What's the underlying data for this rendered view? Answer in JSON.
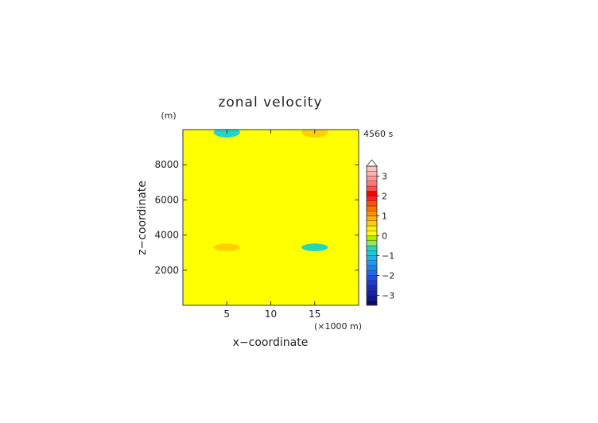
{
  "chart_data": {
    "type": "heatmap",
    "title": "zonal velocity",
    "xlabel": "x−coordinate",
    "ylabel": "z−coordinate",
    "x_unit": "(×1000 m)",
    "y_unit": "(m)",
    "time_label": "4560 s",
    "xlim": [
      0,
      20
    ],
    "ylim": [
      0,
      10000
    ],
    "x_ticks": [
      5,
      10,
      15
    ],
    "x_tick_labels": [
      "5",
      "10",
      "15"
    ],
    "y_ticks": [
      2000,
      4000,
      6000,
      8000
    ],
    "y_tick_labels": [
      "2000",
      "4000",
      "6000",
      "8000"
    ],
    "colorbar": {
      "levels": [
        -3.5,
        -3.25,
        -3,
        -2.75,
        -2.5,
        -2.25,
        -2,
        -1.75,
        -1.5,
        -1.25,
        -1,
        -0.75,
        -0.5,
        -0.25,
        0,
        0.25,
        0.5,
        0.75,
        1,
        1.25,
        1.5,
        1.75,
        2,
        2.25,
        2.5,
        2.75,
        3,
        3.25,
        3.5
      ],
      "colors": [
        "#0a0a6e",
        "#10148a",
        "#1620a0",
        "#1e2ab8",
        "#1e3ad0",
        "#1e50e0",
        "#2068ea",
        "#2080f0",
        "#2098f0",
        "#20b0ea",
        "#20c8dc",
        "#20d8c0",
        "#90e860",
        "#a8f000",
        "#ffff00",
        "#fff000",
        "#ffd000",
        "#ffb000",
        "#ff9000",
        "#ff7000",
        "#ff5000",
        "#ff2020",
        "#ff0000",
        "#ff5050",
        "#ff7878",
        "#ff9898",
        "#ffb0b0",
        "#ffc0c0"
      ],
      "tick_values": [
        -3,
        -2,
        -1,
        0,
        1,
        2,
        3
      ],
      "tick_labels": [
        "−3",
        "−2",
        "−1",
        "0",
        "1",
        "2",
        "3"
      ],
      "extend": "max"
    },
    "regions": [
      {
        "x": [
          0,
          10
        ],
        "z": [
          0,
          2450
        ],
        "value": 0.1
      },
      {
        "x": [
          0,
          10
        ],
        "z": [
          2450,
          4150
        ],
        "value": 0.2
      },
      {
        "x": [
          0,
          10
        ],
        "z": [
          4150,
          5750
        ],
        "value": 0.1
      },
      {
        "x": [
          0,
          10
        ],
        "z": [
          5750,
          8250
        ],
        "value": 0.2
      },
      {
        "x": [
          0,
          10
        ],
        "z": [
          8250,
          10000
        ],
        "value": 0.1
      },
      {
        "x": [
          10,
          20
        ],
        "z": [
          0,
          2450
        ],
        "value": 0.2
      },
      {
        "x": [
          10,
          20
        ],
        "z": [
          2450,
          4150
        ],
        "value": 0.1
      },
      {
        "x": [
          10,
          20
        ],
        "z": [
          4150,
          5750
        ],
        "value": 0.2
      },
      {
        "x": [
          10,
          20
        ],
        "z": [
          5750,
          8250
        ],
        "value": 0.1
      },
      {
        "x": [
          10,
          20
        ],
        "z": [
          8250,
          10000
        ],
        "value": 0.2
      }
    ],
    "features": [
      {
        "x": 5,
        "z": 3300,
        "rx": 1.5,
        "rz": 220,
        "value": 0.7
      },
      {
        "x": 15,
        "z": 3300,
        "rx": 1.5,
        "rz": 220,
        "value": -0.7
      },
      {
        "x": 5,
        "z": 9850,
        "rx": 1.5,
        "rz": 300,
        "value": -0.7
      },
      {
        "x": 15,
        "z": 9850,
        "rx": 1.5,
        "rz": 300,
        "value": 0.7
      }
    ]
  }
}
